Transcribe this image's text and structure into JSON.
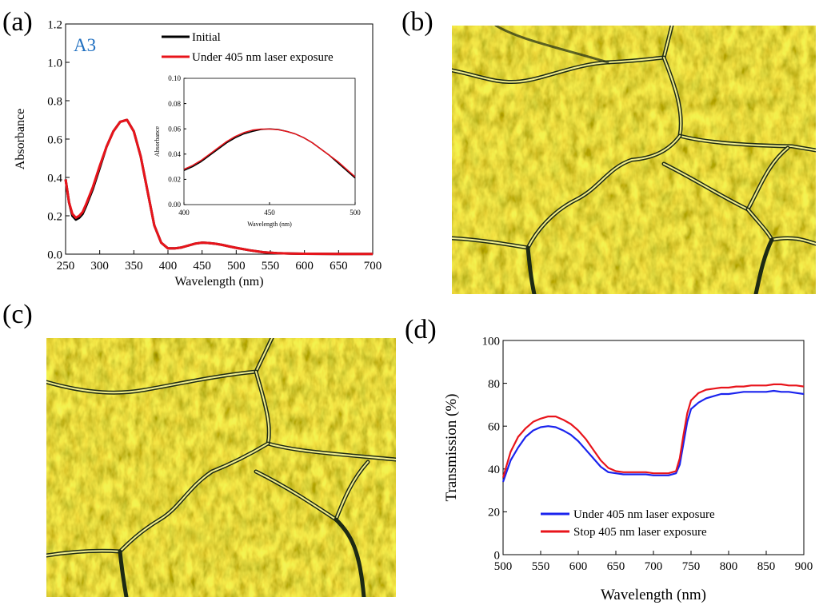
{
  "panels": {
    "a": "(a)",
    "b": "(b)",
    "c": "(c)",
    "d": "(d)"
  },
  "colors": {
    "initial": "#000000",
    "laser": "#e8141b",
    "under": "#1a23ee",
    "stop": "#e8141b",
    "sample_label": "#1f6fc0"
  },
  "chart_data": [
    {
      "id": "a-main",
      "type": "line",
      "sample_label": "A3",
      "xlabel": "Wavelength (nm)",
      "ylabel": "Absorbance",
      "xlim": [
        250,
        700
      ],
      "ylim": [
        0,
        1.2
      ],
      "xticks": [
        250,
        300,
        350,
        400,
        450,
        500,
        550,
        600,
        650,
        700
      ],
      "yticks": [
        "0.0",
        "0.2",
        "0.4",
        "0.6",
        "0.8",
        "1.0",
        "1.2"
      ],
      "legend_position": "top-right",
      "grid": false,
      "x": [
        250,
        255,
        260,
        265,
        270,
        275,
        280,
        290,
        300,
        310,
        320,
        330,
        340,
        350,
        360,
        370,
        380,
        390,
        400,
        410,
        420,
        430,
        440,
        450,
        460,
        470,
        480,
        490,
        500,
        520,
        540,
        560,
        580,
        600,
        650,
        700
      ],
      "series": [
        {
          "name": "Initial",
          "color_key": "initial",
          "values": [
            0.39,
            0.27,
            0.2,
            0.18,
            0.19,
            0.21,
            0.25,
            0.34,
            0.45,
            0.56,
            0.64,
            0.69,
            0.7,
            0.64,
            0.51,
            0.33,
            0.15,
            0.06,
            0.03,
            0.03,
            0.035,
            0.045,
            0.055,
            0.06,
            0.058,
            0.054,
            0.048,
            0.04,
            0.033,
            0.02,
            0.01,
            0.005,
            0.003,
            0.002,
            0.001,
            0.001
          ]
        },
        {
          "name": "Under 405 nm laser exposure",
          "color_key": "laser",
          "values": [
            0.39,
            0.27,
            0.21,
            0.19,
            0.2,
            0.22,
            0.26,
            0.35,
            0.46,
            0.56,
            0.64,
            0.69,
            0.7,
            0.64,
            0.51,
            0.33,
            0.15,
            0.06,
            0.03,
            0.03,
            0.035,
            0.045,
            0.055,
            0.06,
            0.058,
            0.054,
            0.048,
            0.04,
            0.033,
            0.02,
            0.01,
            0.005,
            0.003,
            0.002,
            0.001,
            0.001
          ]
        }
      ]
    },
    {
      "id": "a-inset",
      "type": "line",
      "xlabel": "Wavelength (nm)",
      "ylabel": "Absorbance",
      "xlim": [
        400,
        500
      ],
      "ylim": [
        0,
        0.1
      ],
      "xticks": [
        400,
        450,
        500
      ],
      "yticks": [
        "0.00",
        "0.02",
        "0.04",
        "0.06",
        "0.08",
        "0.10"
      ],
      "x": [
        400,
        405,
        410,
        415,
        420,
        425,
        430,
        435,
        440,
        445,
        450,
        455,
        460,
        465,
        470,
        475,
        480,
        485,
        490,
        495,
        500
      ],
      "series": [
        {
          "name": "Initial",
          "color_key": "initial",
          "values": [
            0.027,
            0.03,
            0.034,
            0.039,
            0.044,
            0.049,
            0.053,
            0.056,
            0.058,
            0.0595,
            0.06,
            0.0595,
            0.058,
            0.056,
            0.053,
            0.049,
            0.044,
            0.039,
            0.033,
            0.027,
            0.021
          ]
        },
        {
          "name": "Under 405 nm laser exposure",
          "color_key": "laser",
          "values": [
            0.028,
            0.031,
            0.035,
            0.04,
            0.045,
            0.05,
            0.054,
            0.057,
            0.059,
            0.0598,
            0.0598,
            0.0593,
            0.058,
            0.056,
            0.053,
            0.049,
            0.044,
            0.039,
            0.034,
            0.028,
            0.022
          ]
        }
      ]
    },
    {
      "id": "d",
      "type": "line",
      "xlabel": "Wavelength (nm)",
      "ylabel": "Transmission (%)",
      "xlim": [
        500,
        900
      ],
      "ylim": [
        0,
        100
      ],
      "xticks": [
        500,
        550,
        600,
        650,
        700,
        750,
        800,
        850,
        900
      ],
      "yticks": [
        0,
        20,
        40,
        60,
        80,
        100
      ],
      "legend_position": "bottom-right",
      "grid": false,
      "x": [
        500,
        510,
        520,
        530,
        540,
        550,
        560,
        570,
        580,
        590,
        600,
        610,
        620,
        630,
        640,
        650,
        660,
        670,
        680,
        690,
        700,
        710,
        720,
        730,
        735,
        740,
        745,
        750,
        760,
        770,
        780,
        790,
        800,
        810,
        820,
        830,
        840,
        850,
        860,
        870,
        880,
        890,
        900
      ],
      "series": [
        {
          "name": "Under 405 nm laser exposure",
          "color_key": "under",
          "values": [
            34,
            44,
            50,
            55,
            58,
            59.5,
            60,
            59.5,
            58,
            56,
            53,
            49,
            45,
            41,
            38.5,
            38,
            37.5,
            37.5,
            37.5,
            37.5,
            37,
            37,
            37,
            38,
            42,
            52,
            62,
            68,
            71,
            73,
            74,
            75,
            75,
            75.5,
            76,
            76,
            76,
            76,
            76.5,
            76,
            76,
            75.5,
            75
          ]
        },
        {
          "name": "Stop 405 nm laser exposure",
          "color_key": "stop",
          "values": [
            36,
            48,
            55,
            59,
            62,
            63.5,
            64.5,
            64.5,
            63,
            61,
            58,
            54,
            49,
            44,
            40.5,
            39,
            38.5,
            38.5,
            38.5,
            38.5,
            38,
            38,
            38,
            39,
            45,
            56,
            66,
            72,
            75.5,
            77,
            77.5,
            78,
            78,
            78.5,
            78.5,
            79,
            79,
            79,
            79.5,
            79.5,
            79,
            79,
            78.5
          ]
        }
      ]
    }
  ],
  "micrographs": {
    "b": {
      "label": "optical micrograph (b)"
    },
    "c": {
      "label": "optical micrograph (c)"
    }
  }
}
